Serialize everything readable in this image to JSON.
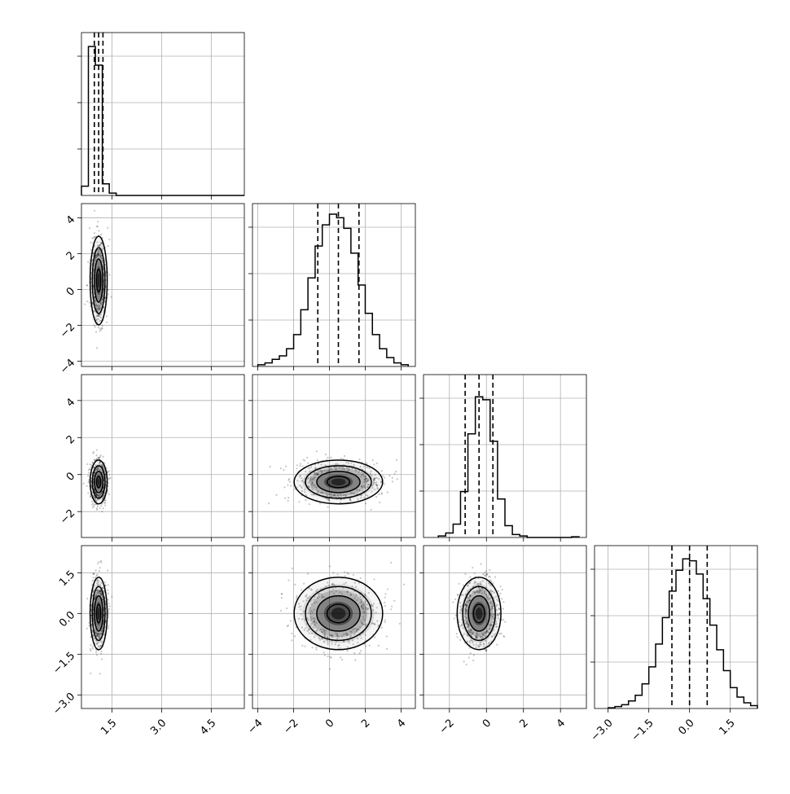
{
  "chart_data": {
    "type": "corner",
    "grid": true,
    "params": [
      {
        "range": [
          0.58,
          5.5
        ],
        "ticks": [
          1.5,
          3.0,
          4.5
        ],
        "tick_labels": [
          "1.5",
          "3.0",
          "4.5"
        ],
        "quantiles": [
          0.97,
          1.1,
          1.23
        ],
        "hist": {
          "bins": [
            0.58,
            0.79,
            1.0,
            1.21,
            1.42,
            1.63,
            1.84,
            2.05,
            2.26,
            2.47,
            2.68,
            2.89,
            3.1,
            3.31,
            3.52,
            3.73,
            3.94,
            4.15,
            4.36,
            4.57,
            4.78,
            4.99,
            5.2,
            5.5
          ],
          "counts": [
            0.04,
            0.64,
            0.56,
            0.05,
            0.01,
            0,
            0,
            0,
            0,
            0,
            0,
            0,
            0,
            0,
            0,
            0,
            0,
            0,
            0,
            0,
            0,
            0,
            0
          ]
        },
        "hist_ylim": [
          0,
          0.7
        ]
      },
      {
        "range": [
          -4.3,
          4.8
        ],
        "ticks": [
          -4,
          -2,
          0,
          2,
          4
        ],
        "tick_labels": [
          "−4",
          "−2",
          "0",
          "2",
          "4"
        ],
        "quantiles": [
          -0.65,
          0.5,
          1.65
        ],
        "hist": {
          "bins": [
            -4.0,
            -3.6,
            -3.2,
            -2.8,
            -2.4,
            -2.0,
            -1.6,
            -1.2,
            -0.8,
            -0.4,
            0.0,
            0.4,
            0.8,
            1.2,
            1.6,
            2.0,
            2.4,
            2.8,
            3.2,
            3.6,
            4.0,
            4.4
          ],
          "counts": [
            0.01,
            0.02,
            0.04,
            0.06,
            0.1,
            0.18,
            0.32,
            0.5,
            0.68,
            0.8,
            0.86,
            0.84,
            0.78,
            0.64,
            0.46,
            0.3,
            0.18,
            0.1,
            0.05,
            0.02,
            0.01
          ]
        },
        "hist_ylim": [
          0,
          0.92
        ]
      },
      {
        "range": [
          -3.4,
          5.4
        ],
        "ticks": [
          -2,
          0,
          2,
          4
        ],
        "tick_labels": [
          "−2",
          "0",
          "2",
          "4"
        ],
        "quantiles": [
          -1.15,
          -0.4,
          0.35
        ],
        "hist": {
          "bins": [
            -2.6,
            -2.2,
            -1.8,
            -1.4,
            -1.0,
            -0.6,
            -0.2,
            0.2,
            0.6,
            1.0,
            1.4,
            1.8,
            2.2,
            2.6,
            3.0,
            3.4,
            3.8,
            4.2,
            4.6,
            5.0
          ],
          "counts": [
            0.01,
            0.03,
            0.09,
            0.31,
            0.7,
            0.95,
            0.93,
            0.65,
            0.26,
            0.08,
            0.02,
            0.01,
            0,
            0,
            0,
            0,
            0,
            0,
            0.005
          ]
        },
        "hist_ylim": [
          0,
          1.1
        ]
      },
      {
        "range": [
          -3.5,
          2.5
        ],
        "ticks": [
          -3.0,
          -1.5,
          0.0,
          1.5
        ],
        "tick_labels": [
          "−3.0",
          "−1.5",
          "0.0",
          "1.5"
        ],
        "quantiles": [
          -0.65,
          0.0,
          0.65
        ],
        "hist": {
          "bins": [
            -3.0,
            -2.75,
            -2.5,
            -2.25,
            -2.0,
            -1.75,
            -1.5,
            -1.25,
            -1.0,
            -0.75,
            -0.5,
            -0.25,
            0.0,
            0.25,
            0.5,
            0.75,
            1.0,
            1.25,
            1.5,
            1.75,
            2.0,
            2.25,
            2.5
          ],
          "counts": [
            0.004,
            0.01,
            0.02,
            0.04,
            0.07,
            0.13,
            0.22,
            0.34,
            0.48,
            0.62,
            0.73,
            0.79,
            0.78,
            0.71,
            0.58,
            0.44,
            0.31,
            0.2,
            0.11,
            0.06,
            0.03,
            0.015
          ]
        },
        "hist_ylim": [
          0,
          0.86
        ]
      }
    ],
    "pairs": [
      {
        "row": 1,
        "col": 0,
        "center": [
          1.1,
          0.5
        ],
        "sigma": [
          0.12,
          1.15
        ]
      },
      {
        "row": 2,
        "col": 0,
        "center": [
          1.1,
          -0.4
        ],
        "sigma": [
          0.12,
          0.55
        ]
      },
      {
        "row": 2,
        "col": 1,
        "center": [
          0.5,
          -0.4
        ],
        "sigma": [
          1.15,
          0.55
        ]
      },
      {
        "row": 3,
        "col": 0,
        "center": [
          1.1,
          0.0
        ],
        "sigma": [
          0.12,
          0.62
        ]
      },
      {
        "row": 3,
        "col": 1,
        "center": [
          0.5,
          0.0
        ],
        "sigma": [
          1.15,
          0.62
        ]
      },
      {
        "row": 3,
        "col": 2,
        "center": [
          -0.4,
          0.0
        ],
        "sigma": [
          0.55,
          0.62
        ]
      }
    ]
  }
}
